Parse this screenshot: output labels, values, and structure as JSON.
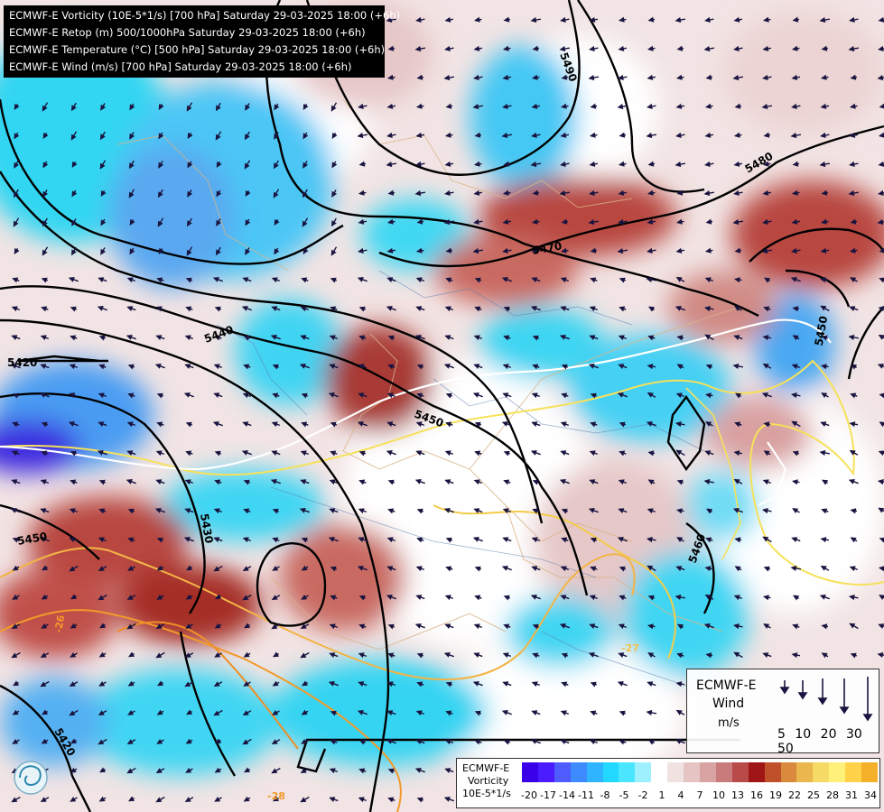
{
  "titles": [
    "ECMWF-E Vorticity (10E-5*1/s) [700 hPa] Saturday 29-03-2025 18:00 (+6h)",
    "ECMWF-E Retop (m) 500/1000hPa Saturday 29-03-2025 18:00 (+6h)",
    "ECMWF-E Temperature (°C) [500 hPa] Saturday 29-03-2025 18:00 (+6h)",
    "ECMWF-E Wind (m/s) [700 hPa] Saturday 29-03-2025 18:00 (+6h)"
  ],
  "contour_labels": {
    "c5490": "5490",
    "c5480": "5480",
    "c5470": "5470",
    "c5450a": "5450",
    "c5440": "5440",
    "c5450b": "5450",
    "c5420": "5420",
    "c5430": "5430",
    "c5450c": "5450",
    "c5460": "5460",
    "c5420b": "5420"
  },
  "temp_labels": {
    "t26": "-26",
    "t28": "-28",
    "t27a": "-27",
    "t27b": "-27"
  },
  "wind_legend": {
    "title1": "ECMWF-E",
    "title2": "Wind",
    "unit": "m/s",
    "speeds": [
      "5",
      "10",
      "20",
      "30",
      "50"
    ]
  },
  "colorbar": {
    "label1": "ECMWF-E",
    "label2": "Vorticity",
    "label3": "10E-5*1/s",
    "ticks": [
      "-20",
      "-17",
      "-14",
      "-11",
      "-8",
      "-5",
      "-2",
      "1",
      "4",
      "7",
      "10",
      "13",
      "16",
      "19",
      "22",
      "25",
      "28",
      "31",
      "34"
    ],
    "colors": [
      "#3a00e8",
      "#4a1cff",
      "#4f5cff",
      "#3d8bff",
      "#2fb4ff",
      "#22d8ff",
      "#4ae6ff",
      "#9ef0ff",
      "#ffffff",
      "#f1e2e2",
      "#e6c4c4",
      "#d9a3a3",
      "#c97b7b",
      "#b94a4a",
      "#a01616",
      "#c0502a",
      "#d98a3c",
      "#eab64e",
      "#f5da66",
      "#fff07a",
      "#ffd24a",
      "#f5b02a"
    ]
  },
  "colors": {
    "cyan": "#33d6f2",
    "blue": "#5aa8f0",
    "deepblue": "#3c2ae0",
    "red": "#b8463f",
    "pink": "#e8c6c6",
    "contour": "#000000",
    "temp_yellow": "#f6e15a",
    "temp_orange": "#f19a2a"
  }
}
